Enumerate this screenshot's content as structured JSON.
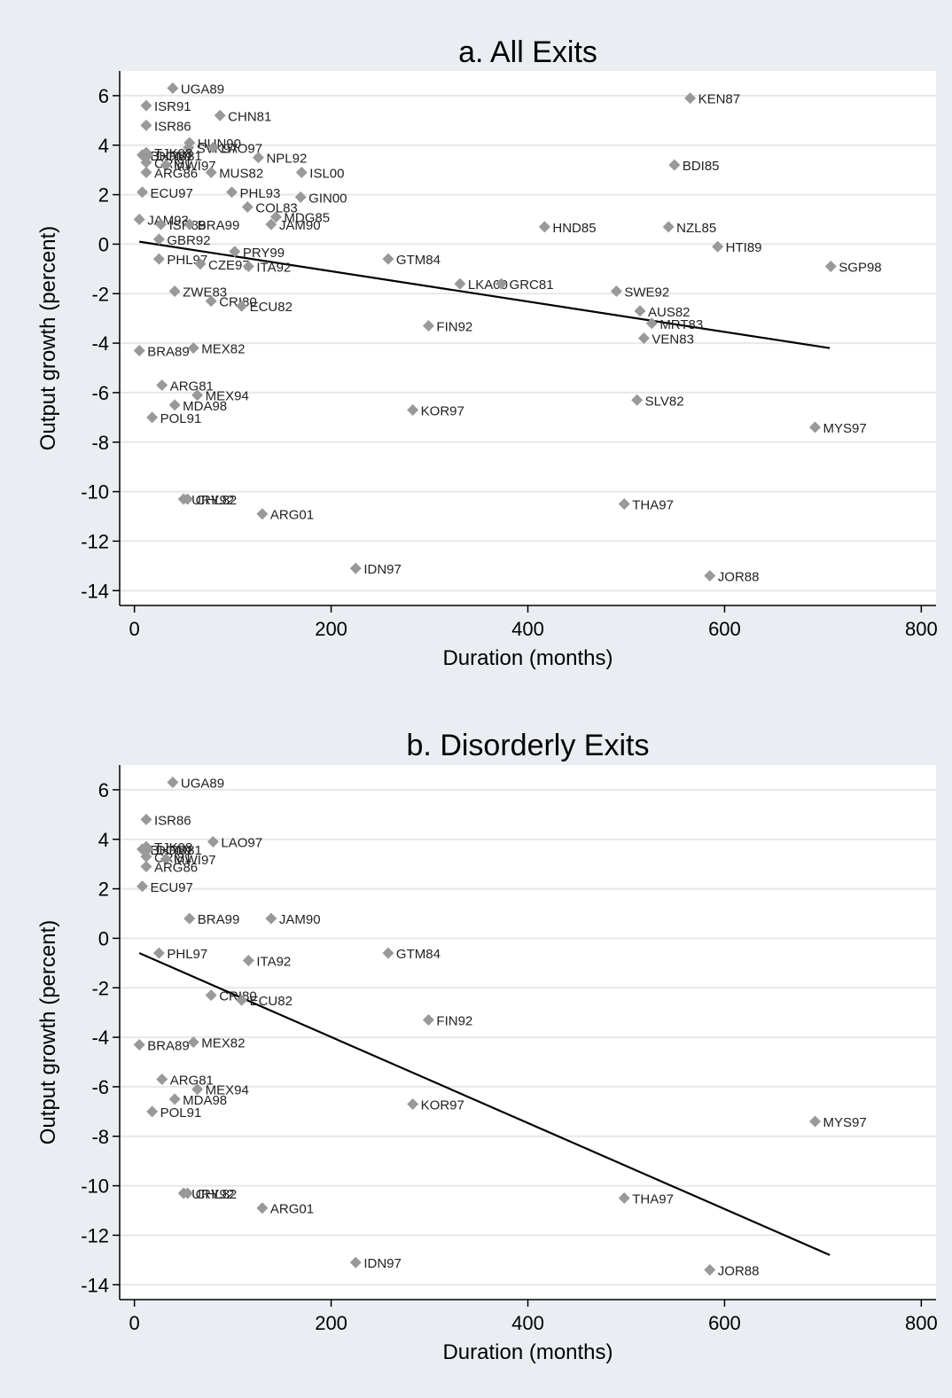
{
  "chart_data": [
    {
      "type": "scatter",
      "title": "a. All Exits",
      "xlabel": "Duration (months)",
      "ylabel": "Output growth (percent)",
      "xlim": [
        -15,
        815
      ],
      "ylim": [
        -14.6,
        7.0
      ],
      "xticks": [
        0,
        200,
        400,
        600,
        800
      ],
      "yticks": [
        6,
        4,
        2,
        0,
        -2,
        -4,
        -6,
        -8,
        -10,
        -12,
        -14
      ],
      "grid": true,
      "legend": "none",
      "marker_color": "#999999",
      "line_color": "#000000",
      "fit_line": {
        "x": [
          5,
          707
        ],
        "y": [
          0.1,
          -4.2
        ]
      },
      "points": [
        {
          "label": "UGA89",
          "x": 39,
          "y": 6.3
        },
        {
          "label": "ISR91",
          "x": 12,
          "y": 5.6
        },
        {
          "label": "CHN81",
          "x": 87,
          "y": 5.2
        },
        {
          "label": "KEN87",
          "x": 565,
          "y": 5.9
        },
        {
          "label": "ISR86",
          "x": 12,
          "y": 4.8
        },
        {
          "label": "HUN90",
          "x": 56,
          "y": 4.1
        },
        {
          "label": "SVK97",
          "x": 55,
          "y": 3.9
        },
        {
          "label": "LAO97",
          "x": 80,
          "y": 3.9
        },
        {
          "label": "TJK98",
          "x": 12,
          "y": 3.7
        },
        {
          "label": "BHR81",
          "x": 8,
          "y": 3.6
        },
        {
          "label": "DOM81",
          "x": 14,
          "y": 3.6
        },
        {
          "label": "NPL92",
          "x": 126,
          "y": 3.5
        },
        {
          "label": "CRI81",
          "x": 12,
          "y": 3.3
        },
        {
          "label": "MWI97",
          "x": 32,
          "y": 3.2
        },
        {
          "label": "BDI85",
          "x": 549,
          "y": 3.2
        },
        {
          "label": "MUS82",
          "x": 78,
          "y": 2.9
        },
        {
          "label": "ISL00",
          "x": 170,
          "y": 2.9
        },
        {
          "label": "ARG86",
          "x": 12,
          "y": 2.9
        },
        {
          "label": "ECU97",
          "x": 8,
          "y": 2.1
        },
        {
          "label": "PHL93",
          "x": 99,
          "y": 2.1
        },
        {
          "label": "GIN00",
          "x": 169,
          "y": 1.9
        },
        {
          "label": "COL83",
          "x": 115,
          "y": 1.5
        },
        {
          "label": "MDG85",
          "x": 144,
          "y": 1.1
        },
        {
          "label": "JAM93",
          "x": 5,
          "y": 1.0
        },
        {
          "label": "ISR89",
          "x": 27,
          "y": 0.8
        },
        {
          "label": "BRA99",
          "x": 56,
          "y": 0.8
        },
        {
          "label": "JAM90",
          "x": 139,
          "y": 0.8
        },
        {
          "label": "HND85",
          "x": 417,
          "y": 0.7
        },
        {
          "label": "NZL85",
          "x": 543,
          "y": 0.7
        },
        {
          "label": "GBR92",
          "x": 25,
          "y": 0.2
        },
        {
          "label": "HTI89",
          "x": 593,
          "y": -0.1
        },
        {
          "label": "PRY99",
          "x": 102,
          "y": -0.3
        },
        {
          "label": "PHL97",
          "x": 25,
          "y": -0.6
        },
        {
          "label": "GTM84",
          "x": 258,
          "y": -0.6
        },
        {
          "label": "CZE97",
          "x": 67,
          "y": -0.8
        },
        {
          "label": "ITA92",
          "x": 116,
          "y": -0.9
        },
        {
          "label": "SGP98",
          "x": 708,
          "y": -0.9
        },
        {
          "label": "LKA00",
          "x": 331,
          "y": -1.6
        },
        {
          "label": "GRC81",
          "x": 373,
          "y": -1.6
        },
        {
          "label": "SWE92",
          "x": 490,
          "y": -1.9
        },
        {
          "label": "ZWE83",
          "x": 41,
          "y": -1.9
        },
        {
          "label": "CRI80",
          "x": 78,
          "y": -2.3
        },
        {
          "label": "ECU82",
          "x": 109,
          "y": -2.5
        },
        {
          "label": "AUS82",
          "x": 514,
          "y": -2.7
        },
        {
          "label": "MRT83",
          "x": 526,
          "y": -3.2
        },
        {
          "label": "FIN92",
          "x": 299,
          "y": -3.3
        },
        {
          "label": "VEN83",
          "x": 518,
          "y": -3.8
        },
        {
          "label": "BRA89",
          "x": 5,
          "y": -4.3
        },
        {
          "label": "MEX82",
          "x": 60,
          "y": -4.2
        },
        {
          "label": "ARG81",
          "x": 28,
          "y": -5.7
        },
        {
          "label": "MEX94",
          "x": 64,
          "y": -6.1
        },
        {
          "label": "SLV82",
          "x": 511,
          "y": -6.3
        },
        {
          "label": "MDA98",
          "x": 41,
          "y": -6.5
        },
        {
          "label": "KOR97",
          "x": 283,
          "y": -6.7
        },
        {
          "label": "POL91",
          "x": 18,
          "y": -7.0
        },
        {
          "label": "MYS97",
          "x": 692,
          "y": -7.4
        },
        {
          "label": "URY92",
          "x": 50,
          "y": -10.3
        },
        {
          "label": "CHL82",
          "x": 54,
          "y": -10.3
        },
        {
          "label": "THA97",
          "x": 498,
          "y": -10.5
        },
        {
          "label": "ARG01",
          "x": 130,
          "y": -10.9
        },
        {
          "label": "IDN97",
          "x": 225,
          "y": -13.1
        },
        {
          "label": "JOR88",
          "x": 585,
          "y": -13.4
        }
      ]
    },
    {
      "type": "scatter",
      "title": "b. Disorderly Exits",
      "xlabel": "Duration (months)",
      "ylabel": "Output growth (percent)",
      "xlim": [
        -15,
        815
      ],
      "ylim": [
        -14.6,
        7.0
      ],
      "xticks": [
        0,
        200,
        400,
        600,
        800
      ],
      "yticks": [
        6,
        4,
        2,
        0,
        -2,
        -4,
        -6,
        -8,
        -10,
        -12,
        -14
      ],
      "grid": true,
      "legend": "none",
      "marker_color": "#999999",
      "line_color": "#000000",
      "fit_line": {
        "x": [
          5,
          707
        ],
        "y": [
          -0.6,
          -12.8
        ]
      },
      "points": [
        {
          "label": "UGA89",
          "x": 39,
          "y": 6.3
        },
        {
          "label": "ISR86",
          "x": 12,
          "y": 4.8
        },
        {
          "label": "LAO97",
          "x": 80,
          "y": 3.9
        },
        {
          "label": "TJK98",
          "x": 12,
          "y": 3.7
        },
        {
          "label": "BHR81",
          "x": 8,
          "y": 3.6
        },
        {
          "label": "DOM81",
          "x": 14,
          "y": 3.6
        },
        {
          "label": "CRI81",
          "x": 12,
          "y": 3.3
        },
        {
          "label": "MWI97",
          "x": 32,
          "y": 3.2
        },
        {
          "label": "ARG86",
          "x": 12,
          "y": 2.9
        },
        {
          "label": "ECU97",
          "x": 8,
          "y": 2.1
        },
        {
          "label": "BRA99",
          "x": 56,
          "y": 0.8
        },
        {
          "label": "JAM90",
          "x": 139,
          "y": 0.8
        },
        {
          "label": "PHL97",
          "x": 25,
          "y": -0.6
        },
        {
          "label": "GTM84",
          "x": 258,
          "y": -0.6
        },
        {
          "label": "ITA92",
          "x": 116,
          "y": -0.9
        },
        {
          "label": "CRI80",
          "x": 78,
          "y": -2.3
        },
        {
          "label": "ECU82",
          "x": 109,
          "y": -2.5
        },
        {
          "label": "FIN92",
          "x": 299,
          "y": -3.3
        },
        {
          "label": "BRA89",
          "x": 5,
          "y": -4.3
        },
        {
          "label": "MEX82",
          "x": 60,
          "y": -4.2
        },
        {
          "label": "ARG81",
          "x": 28,
          "y": -5.7
        },
        {
          "label": "MEX94",
          "x": 64,
          "y": -6.1
        },
        {
          "label": "MDA98",
          "x": 41,
          "y": -6.5
        },
        {
          "label": "KOR97",
          "x": 283,
          "y": -6.7
        },
        {
          "label": "POL91",
          "x": 18,
          "y": -7.0
        },
        {
          "label": "MYS97",
          "x": 692,
          "y": -7.4
        },
        {
          "label": "URY92",
          "x": 50,
          "y": -10.3
        },
        {
          "label": "CHL82",
          "x": 54,
          "y": -10.3
        },
        {
          "label": "THA97",
          "x": 498,
          "y": -10.5
        },
        {
          "label": "ARG01",
          "x": 130,
          "y": -10.9
        },
        {
          "label": "IDN97",
          "x": 225,
          "y": -13.1
        },
        {
          "label": "JOR88",
          "x": 585,
          "y": -13.4
        }
      ]
    }
  ]
}
